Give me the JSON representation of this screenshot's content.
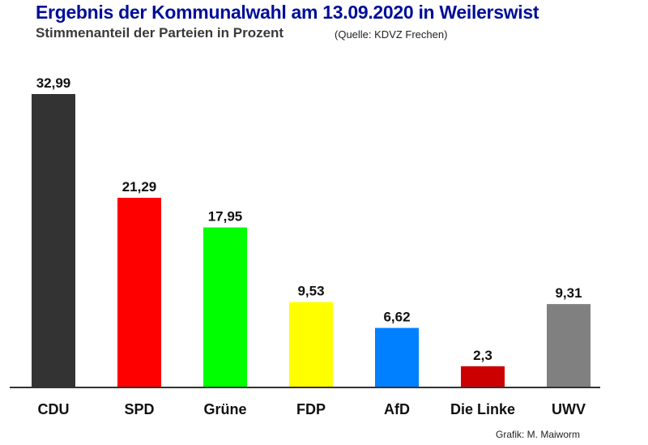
{
  "chart_data": {
    "type": "bar",
    "title": "Ergebnis der Kommunalwahl am 13.09.2020 in Weilerswist",
    "subtitle": "Stimmenanteil der Parteien in Prozent",
    "source": "(Quelle: KDVZ Frechen)",
    "credit": "Grafik: M. Maiworm",
    "xlabel": "",
    "ylabel": "",
    "ylim": [
      0,
      33
    ],
    "grid": false,
    "categories": [
      "CDU",
      "SPD",
      "Grüne",
      "FDP",
      "AfD",
      "Die Linke",
      "UWV"
    ],
    "values": [
      32.99,
      21.29,
      17.95,
      9.53,
      6.62,
      2.3,
      9.31
    ],
    "value_labels": [
      "32,99",
      "21,29",
      "17,95",
      "9,53",
      "6,62",
      "2,3",
      "9,31"
    ],
    "colors": [
      "#333333",
      "#ff0000",
      "#00ff00",
      "#ffff00",
      "#0080ff",
      "#cc0000",
      "#808080"
    ]
  }
}
